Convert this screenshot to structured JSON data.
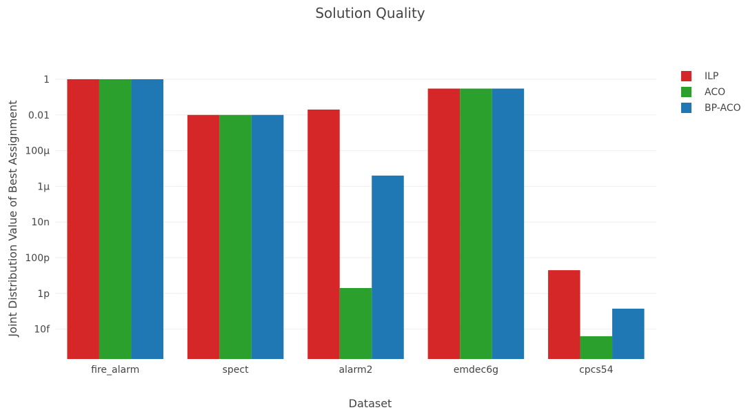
{
  "chart_data": {
    "type": "bar",
    "title": "Solution Quality",
    "xlabel": "Dataset",
    "ylabel": "Joint Distribution Value of Best Assignment",
    "y_scale": "log",
    "ylim": [
      2e-16,
      3
    ],
    "y_ticks": [
      {
        "value": 1,
        "label": "1"
      },
      {
        "value": 0.01,
        "label": "0.01"
      },
      {
        "value": 0.0001,
        "label": "100μ"
      },
      {
        "value": 1e-06,
        "label": "1μ"
      },
      {
        "value": 1e-08,
        "label": "10n"
      },
      {
        "value": 1e-10,
        "label": "100p"
      },
      {
        "value": 1e-12,
        "label": "1p"
      },
      {
        "value": 1e-14,
        "label": "10f"
      }
    ],
    "grid": true,
    "legend_position": "top-right",
    "categories": [
      "fire_alarm",
      "spect",
      "alarm2",
      "emdec6g",
      "cpcs54"
    ],
    "series": [
      {
        "name": "ILP",
        "color": "#d62728",
        "values": [
          1,
          0.01,
          0.02,
          0.3,
          2e-11
        ]
      },
      {
        "name": "ACO",
        "color": "#2ca02c",
        "values": [
          1,
          0.01,
          2e-12,
          0.3,
          4e-15
        ]
      },
      {
        "name": "BP-ACO",
        "color": "#1f77b4",
        "values": [
          1,
          0.01,
          4e-06,
          0.3,
          1.4e-13
        ]
      }
    ]
  }
}
